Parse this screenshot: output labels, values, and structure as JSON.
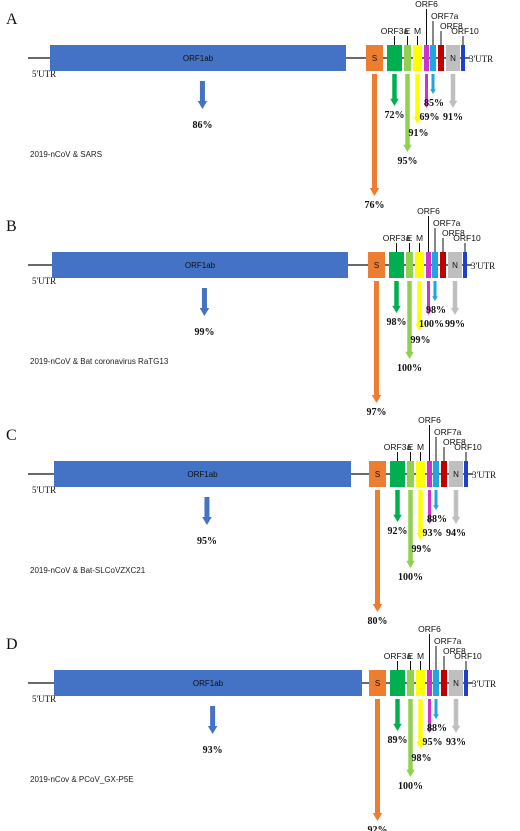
{
  "utr5": "5'UTR",
  "utr3": "3'UTR",
  "genes": [
    {
      "key": "orf1ab",
      "label": "ORF1ab",
      "color": "#4472c4"
    },
    {
      "key": "s",
      "label": "S",
      "color": "#ed7d31"
    },
    {
      "key": "orf3a",
      "label": "ORF3a",
      "color": "#00b050"
    },
    {
      "key": "e",
      "label": "E",
      "color": "#92d050"
    },
    {
      "key": "m",
      "label": "M",
      "color": "#ffff00"
    },
    {
      "key": "orf6",
      "label": "ORF6",
      "color": "#cc33cc"
    },
    {
      "key": "orf7a",
      "label": "ORF7a",
      "color": "#1fa6e0"
    },
    {
      "key": "orf8",
      "label": "ORF8",
      "color": "#c00000"
    },
    {
      "key": "n",
      "label": "N",
      "color": "#bfbfbf"
    },
    {
      "key": "orf10",
      "label": "ORF10",
      "color": "#1f3fcf"
    }
  ],
  "panels": [
    {
      "letter": "A",
      "caption": "2019-nCoV & SARS",
      "identity": {
        "orf1ab": "86%",
        "s": "76%",
        "orf3a": "72%",
        "e": "95%",
        "m": "91%",
        "orf6": "69%",
        "orf7a": "85%",
        "n": "91%"
      }
    },
    {
      "letter": "B",
      "caption": "2019-nCoV & Bat coronavirus RaTG13",
      "identity": {
        "orf1ab": "99%",
        "s": "97%",
        "orf3a": "98%",
        "e": "100%",
        "m": "99%",
        "orf6": "100%",
        "orf7a": "98%",
        "n": "99%"
      }
    },
    {
      "letter": "C",
      "caption": "2019-nCoV & Bat-SLCoVZXC21",
      "identity": {
        "orf1ab": "95%",
        "s": "80%",
        "orf3a": "92%",
        "e": "100%",
        "m": "99%",
        "orf6": "93%",
        "orf7a": "88%",
        "n": "94%"
      }
    },
    {
      "letter": "D",
      "caption": "2019-nCov & PCoV_GX-P5E",
      "identity": {
        "orf1ab": "93%",
        "s": "92%",
        "orf3a": "89%",
        "e": "100%",
        "m": "98%",
        "orf6": "95%",
        "orf7a": "88%",
        "n": "93%"
      }
    }
  ]
}
